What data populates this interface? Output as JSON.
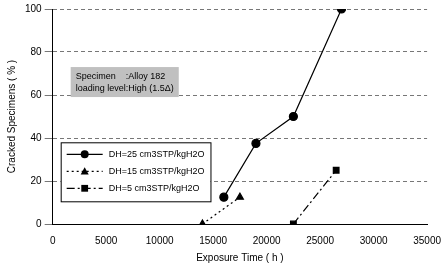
{
  "chart_data": {
    "type": "line",
    "xlabel": "Exposure Time ( h )",
    "ylabel": "Cracked Specimens ( % )",
    "annotations": [
      "Specimen    :Alloy 182",
      "loading level:High (1.5Δ)"
    ],
    "xlim": [
      0,
      35000
    ],
    "xticks": [
      0,
      5000,
      10000,
      15000,
      20000,
      25000,
      30000,
      35000
    ],
    "ylim": [
      0,
      100
    ],
    "yticks": [
      0,
      20,
      40,
      60,
      80,
      100
    ],
    "grid": "y",
    "legend": "upper left",
    "series": [
      {
        "name": "DH=25 cm3STP/kgH2O",
        "color": "#000000",
        "marker": "circle",
        "line_style": "solid",
        "x": [
          16000,
          19000,
          22500,
          27000
        ],
        "values": [
          12.5,
          37.5,
          50,
          100
        ]
      },
      {
        "name": "DH=15 cm3STP/kgH2O",
        "color": "#000000",
        "marker": "triangle",
        "line_style": "dotted",
        "x": [
          14000,
          17500
        ],
        "values": [
          0,
          12.5
        ]
      },
      {
        "name": "DH=5 cm3STP/kgH2O",
        "color": "#000000",
        "marker": "square",
        "line_style": "dashdot",
        "x": [
          22500,
          26500
        ],
        "values": [
          0,
          25
        ]
      }
    ]
  }
}
